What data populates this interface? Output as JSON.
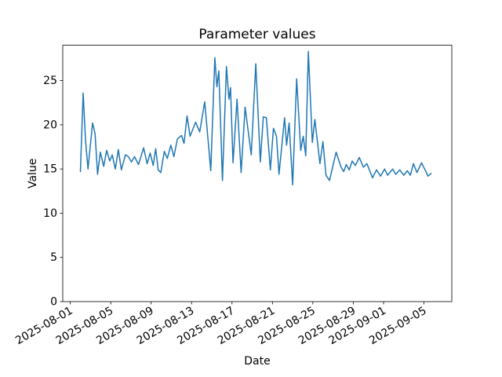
{
  "chart_data": {
    "type": "line",
    "title": "Parameter values",
    "xlabel": "Date",
    "ylabel": "Value",
    "grid": false,
    "legend": false,
    "background_color": "#ffffff",
    "line_color": "#1f77b4",
    "axis_color": "#000000",
    "x_unit": "days since 2025-08-01",
    "xlim": [
      -0.75,
      37.75
    ],
    "ylim": [
      0,
      29
    ],
    "yticks": [
      0,
      5,
      10,
      15,
      20,
      25
    ],
    "xtick_rotation_deg": 30,
    "xticks": [
      {
        "d": 0,
        "label": "2025-08-01"
      },
      {
        "d": 4,
        "label": "2025-08-05"
      },
      {
        "d": 8,
        "label": "2025-08-09"
      },
      {
        "d": 12,
        "label": "2025-08-13"
      },
      {
        "d": 16,
        "label": "2025-08-17"
      },
      {
        "d": 20,
        "label": "2025-08-21"
      },
      {
        "d": 24,
        "label": "2025-08-25"
      },
      {
        "d": 28,
        "label": "2025-08-29"
      },
      {
        "d": 31,
        "label": "2025-09-01"
      },
      {
        "d": 35,
        "label": "2025-09-05"
      }
    ],
    "points": [
      [
        1.0,
        14.7
      ],
      [
        1.27,
        23.6
      ],
      [
        1.5,
        18.3
      ],
      [
        1.75,
        15.0
      ],
      [
        2.2,
        20.2
      ],
      [
        2.45,
        19.0
      ],
      [
        2.7,
        14.4
      ],
      [
        2.97,
        16.9
      ],
      [
        3.3,
        15.3
      ],
      [
        3.6,
        17.1
      ],
      [
        3.9,
        15.9
      ],
      [
        4.15,
        16.6
      ],
      [
        4.45,
        15.0
      ],
      [
        4.75,
        17.2
      ],
      [
        5.05,
        14.9
      ],
      [
        5.45,
        16.6
      ],
      [
        5.75,
        16.4
      ],
      [
        6.05,
        15.8
      ],
      [
        6.35,
        16.4
      ],
      [
        6.75,
        15.5
      ],
      [
        7.25,
        17.4
      ],
      [
        7.6,
        15.6
      ],
      [
        7.9,
        16.8
      ],
      [
        8.2,
        15.4
      ],
      [
        8.45,
        17.3
      ],
      [
        8.7,
        14.9
      ],
      [
        8.95,
        14.6
      ],
      [
        9.3,
        17.0
      ],
      [
        9.6,
        16.2
      ],
      [
        9.95,
        17.7
      ],
      [
        10.25,
        16.4
      ],
      [
        10.6,
        18.4
      ],
      [
        11.0,
        18.8
      ],
      [
        11.25,
        17.9
      ],
      [
        11.55,
        21.0
      ],
      [
        11.85,
        18.7
      ],
      [
        12.4,
        20.3
      ],
      [
        12.8,
        19.2
      ],
      [
        13.3,
        22.6
      ],
      [
        13.9,
        14.8
      ],
      [
        14.3,
        27.6
      ],
      [
        14.5,
        24.3
      ],
      [
        14.7,
        26.1
      ],
      [
        15.05,
        13.7
      ],
      [
        15.45,
        26.6
      ],
      [
        15.7,
        22.9
      ],
      [
        15.85,
        24.2
      ],
      [
        16.1,
        15.7
      ],
      [
        16.5,
        22.9
      ],
      [
        16.9,
        14.6
      ],
      [
        17.3,
        22.0
      ],
      [
        17.9,
        16.6
      ],
      [
        18.35,
        26.9
      ],
      [
        18.8,
        15.8
      ],
      [
        19.1,
        20.9
      ],
      [
        19.4,
        20.8
      ],
      [
        19.8,
        14.9
      ],
      [
        20.1,
        19.6
      ],
      [
        20.4,
        18.7
      ],
      [
        20.65,
        14.4
      ],
      [
        21.2,
        20.8
      ],
      [
        21.4,
        17.7
      ],
      [
        21.65,
        20.2
      ],
      [
        22.0,
        13.2
      ],
      [
        22.4,
        25.2
      ],
      [
        22.8,
        17.1
      ],
      [
        23.05,
        18.7
      ],
      [
        23.3,
        16.5
      ],
      [
        23.55,
        28.3
      ],
      [
        23.95,
        18.0
      ],
      [
        24.2,
        20.6
      ],
      [
        24.7,
        15.6
      ],
      [
        25.0,
        18.1
      ],
      [
        25.3,
        14.3
      ],
      [
        25.65,
        13.7
      ],
      [
        26.3,
        16.9
      ],
      [
        26.8,
        15.2
      ],
      [
        27.05,
        14.7
      ],
      [
        27.3,
        15.5
      ],
      [
        27.6,
        14.9
      ],
      [
        27.9,
        15.9
      ],
      [
        28.2,
        15.4
      ],
      [
        28.6,
        16.3
      ],
      [
        29.0,
        15.2
      ],
      [
        29.35,
        15.6
      ],
      [
        29.9,
        14.0
      ],
      [
        30.3,
        14.9
      ],
      [
        30.7,
        14.2
      ],
      [
        31.1,
        15.0
      ],
      [
        31.4,
        14.3
      ],
      [
        31.9,
        15.0
      ],
      [
        32.2,
        14.4
      ],
      [
        32.6,
        14.9
      ],
      [
        33.0,
        14.3
      ],
      [
        33.35,
        14.8
      ],
      [
        33.65,
        14.3
      ],
      [
        33.95,
        15.6
      ],
      [
        34.3,
        14.6
      ],
      [
        34.75,
        15.7
      ],
      [
        35.1,
        14.9
      ],
      [
        35.4,
        14.2
      ],
      [
        35.7,
        14.5
      ]
    ]
  }
}
